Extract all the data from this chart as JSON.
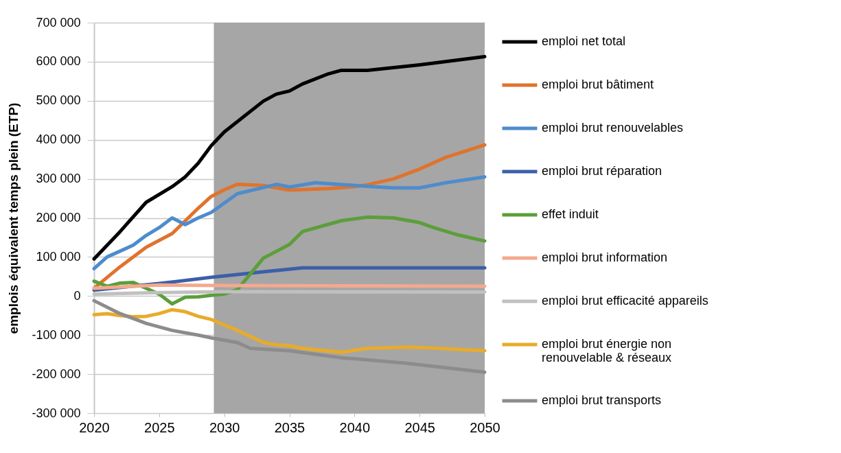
{
  "chart_data": {
    "type": "line",
    "ylabel": "emplois équivalent temps plein (ETP)",
    "xlim": [
      2020,
      2050
    ],
    "xticks": [
      2020,
      2025,
      2030,
      2035,
      2040,
      2045,
      2050
    ],
    "ylim": [
      -300000,
      700000
    ],
    "yticks": [
      {
        "value": -300000,
        "label": "-300 000"
      },
      {
        "value": -200000,
        "label": "-200 000"
      },
      {
        "value": -100000,
        "label": "-100 000"
      },
      {
        "value": 0,
        "label": "0"
      },
      {
        "value": 100000,
        "label": "100 000"
      },
      {
        "value": 200000,
        "label": "200 000"
      },
      {
        "value": 300000,
        "label": "300 000"
      },
      {
        "value": 400000,
        "label": "400 000"
      },
      {
        "value": 500000,
        "label": "500 000"
      },
      {
        "value": 600000,
        "label": "600 000"
      },
      {
        "value": 700000,
        "label": "700 000"
      }
    ],
    "grid": "y",
    "legend": "right",
    "marker": "none",
    "line_style": "solid",
    "bands": [
      {
        "axis": "x",
        "from": 2029.2,
        "to": 2050,
        "color": "#a6a6a6"
      }
    ],
    "series": [
      {
        "name": "emploi net total",
        "color": "#000000",
        "x": [
          2020,
          2022,
          2024,
          2026,
          2027,
          2028,
          2029,
          2030,
          2033,
          2034,
          2035,
          2036,
          2038,
          2039,
          2041,
          2045,
          2050
        ],
        "values": [
          95000,
          165000,
          240000,
          280000,
          305000,
          340000,
          385000,
          420000,
          499000,
          517000,
          525000,
          543000,
          569000,
          578000,
          578000,
          592000,
          613000
        ]
      },
      {
        "name": "emploi brut bâtiment",
        "color": "#e0732d",
        "x": [
          2020,
          2022,
          2024,
          2026,
          2028,
          2029,
          2030,
          2031,
          2033,
          2035,
          2038,
          2040,
          2041,
          2043,
          2045,
          2047,
          2050
        ],
        "values": [
          20000,
          75000,
          125000,
          160000,
          225000,
          255000,
          272000,
          286000,
          283000,
          271000,
          275000,
          280000,
          285000,
          300000,
          325000,
          355000,
          387000
        ]
      },
      {
        "name": "emploi brut renouvelables",
        "color": "#4e8ccc",
        "x": [
          2020,
          2021,
          2022,
          2023,
          2024,
          2025,
          2026,
          2027,
          2028,
          2029,
          2031,
          2034,
          2035,
          2037,
          2041,
          2043,
          2045,
          2047,
          2050
        ],
        "values": [
          70000,
          100000,
          115000,
          130000,
          155000,
          175000,
          200000,
          183000,
          200000,
          214000,
          262000,
          286000,
          279000,
          290000,
          281000,
          277000,
          277000,
          290000,
          305000
        ]
      },
      {
        "name": "emploi brut réparation",
        "color": "#3c5fa8",
        "x": [
          2020,
          2025,
          2029,
          2033,
          2036,
          2050
        ],
        "values": [
          15000,
          32000,
          48000,
          62000,
          72000,
          72000
        ]
      },
      {
        "name": "effet induit",
        "color": "#5c9e3a",
        "x": [
          2020,
          2021,
          2022,
          2023,
          2024,
          2025,
          2026,
          2027,
          2028,
          2029,
          2030,
          2031,
          2033,
          2035,
          2036,
          2039,
          2041,
          2043,
          2045,
          2046,
          2048,
          2050
        ],
        "values": [
          38000,
          25000,
          33000,
          35000,
          20000,
          5000,
          -20000,
          -3000,
          -2000,
          2000,
          5000,
          16000,
          97000,
          132000,
          165000,
          193000,
          202000,
          200000,
          188000,
          176000,
          156000,
          141000
        ]
      },
      {
        "name": "emploi brut information",
        "color": "#f4a98e",
        "x": [
          2020,
          2025,
          2030,
          2050
        ],
        "values": [
          20000,
          28000,
          27000,
          25000
        ]
      },
      {
        "name": "emploi brut efficacité appareils",
        "color": "#c0c0c0",
        "x": [
          2020,
          2025,
          2030,
          2050
        ],
        "values": [
          5000,
          9000,
          11000,
          10000
        ]
      },
      {
        "name": "emploi brut énergie non renouvelable & réseaux",
        "color": "#e8ab2a",
        "x": [
          2020,
          2021,
          2022,
          2023,
          2024,
          2025,
          2026,
          2027,
          2028,
          2029,
          2031,
          2033,
          2034,
          2035,
          2036,
          2039,
          2041,
          2044,
          2046,
          2050
        ],
        "values": [
          -48000,
          -45000,
          -50000,
          -53000,
          -52000,
          -45000,
          -35000,
          -40000,
          -52000,
          -60000,
          -88000,
          -119000,
          -125000,
          -127000,
          -134000,
          -144000,
          -134000,
          -131000,
          -133000,
          -140000
        ]
      },
      {
        "name": "emploi brut transports",
        "color": "#8c8c8c",
        "x": [
          2020,
          2022,
          2024,
          2026,
          2028,
          2029,
          2031,
          2032,
          2035,
          2039,
          2044,
          2050
        ],
        "values": [
          -12000,
          -45000,
          -70000,
          -88000,
          -100000,
          -107000,
          -119000,
          -134000,
          -140000,
          -158000,
          -172000,
          -195000
        ]
      }
    ]
  }
}
